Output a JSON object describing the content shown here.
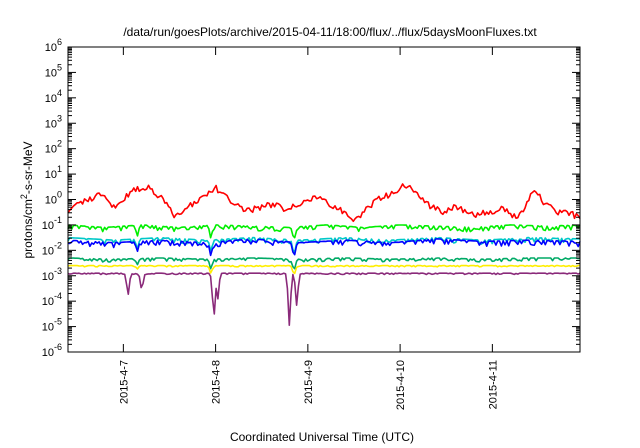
{
  "chart_data": {
    "type": "line",
    "title": "/data/run/goesPlots/archive/2015-04-11/18:00/flux/../flux/5daysMoonFluxes.txt",
    "xlabel": "Coordinated Universal Time (UTC)",
    "ylabel_parts": [
      "protons/cm",
      "2",
      "-s-sr-MeV"
    ],
    "x_domain_days": [
      0,
      5.55
    ],
    "x_ticks": [
      {
        "pos": 0.6,
        "label": "2015-4-7"
      },
      {
        "pos": 1.6,
        "label": "2015-4-8"
      },
      {
        "pos": 2.6,
        "label": "2015-4-9"
      },
      {
        "pos": 3.6,
        "label": "2015-4-10"
      },
      {
        "pos": 4.6,
        "label": "2015-4-11"
      }
    ],
    "y_scale": "log",
    "y_range_exp": [
      -6,
      6
    ],
    "y_ticks": [
      {
        "base": "10",
        "exp": "-6"
      },
      {
        "base": "10",
        "exp": "-5"
      },
      {
        "base": "10",
        "exp": "-4"
      },
      {
        "base": "10",
        "exp": "-3"
      },
      {
        "base": "10",
        "exp": "-2"
      },
      {
        "base": "10",
        "exp": "-1"
      },
      {
        "base": "10",
        "exp": "0"
      },
      {
        "base": "10",
        "exp": "1"
      },
      {
        "base": "10",
        "exp": "2"
      },
      {
        "base": "10",
        "exp": "3"
      },
      {
        "base": "10",
        "exp": "4"
      },
      {
        "base": "10",
        "exp": "5"
      },
      {
        "base": "10",
        "exp": "6"
      }
    ],
    "grid": false,
    "series": [
      {
        "color": "#ff0000",
        "noise": 0.12,
        "points": [
          [
            0,
            -0.4
          ],
          [
            0.15,
            -0.1
          ],
          [
            0.35,
            0.2
          ],
          [
            0.5,
            -0.3
          ],
          [
            0.7,
            0.35
          ],
          [
            0.85,
            0.5
          ],
          [
            1.0,
            0.1
          ],
          [
            1.15,
            -0.6
          ],
          [
            1.3,
            -0.3
          ],
          [
            1.5,
            0.2
          ],
          [
            1.6,
            0.45
          ],
          [
            1.75,
            0.0
          ],
          [
            1.9,
            -0.45
          ],
          [
            2.05,
            -0.35
          ],
          [
            2.2,
            -0.2
          ],
          [
            2.35,
            -0.35
          ],
          [
            2.5,
            -0.15
          ],
          [
            2.7,
            0.1
          ],
          [
            2.85,
            -0.2
          ],
          [
            3.0,
            -0.5
          ],
          [
            3.1,
            -0.85
          ],
          [
            3.2,
            -0.5
          ],
          [
            3.35,
            0.0
          ],
          [
            3.5,
            0.2
          ],
          [
            3.65,
            0.6
          ],
          [
            3.75,
            0.4
          ],
          [
            3.9,
            -0.2
          ],
          [
            4.05,
            -0.5
          ],
          [
            4.2,
            -0.3
          ],
          [
            4.4,
            -0.6
          ],
          [
            4.55,
            -0.5
          ],
          [
            4.7,
            -0.35
          ],
          [
            4.85,
            -0.7
          ],
          [
            4.95,
            -0.4
          ],
          [
            5.05,
            0.45
          ],
          [
            5.15,
            -0.1
          ],
          [
            5.3,
            -0.5
          ],
          [
            5.45,
            -0.55
          ],
          [
            5.55,
            -0.75
          ]
        ],
        "dips": []
      },
      {
        "color": "#00ee00",
        "noise": 0.18,
        "points": [
          [
            0,
            -1.0
          ],
          [
            0.4,
            -1.1
          ],
          [
            0.8,
            -1.0
          ],
          [
            1.2,
            -1.1
          ],
          [
            1.6,
            -1.0
          ],
          [
            2.0,
            -1.05
          ],
          [
            2.4,
            -1.1
          ],
          [
            2.8,
            -1.0
          ],
          [
            3.2,
            -1.1
          ],
          [
            3.6,
            -1.0
          ],
          [
            4.0,
            -1.05
          ],
          [
            4.4,
            -1.1
          ],
          [
            4.8,
            -1.0
          ],
          [
            5.2,
            -1.05
          ],
          [
            5.55,
            -1.0
          ]
        ],
        "dips": [
          [
            0.75,
            -1.5
          ],
          [
            1.55,
            -1.6
          ],
          [
            2.45,
            -1.7
          ]
        ]
      },
      {
        "color": "#00c8c8",
        "noise": 0.18,
        "points": [
          [
            0,
            -1.5
          ],
          [
            0.5,
            -1.6
          ],
          [
            1.0,
            -1.5
          ],
          [
            1.5,
            -1.6
          ],
          [
            2.0,
            -1.5
          ],
          [
            2.5,
            -1.6
          ],
          [
            3.0,
            -1.5
          ],
          [
            3.5,
            -1.6
          ],
          [
            4.0,
            -1.5
          ],
          [
            4.5,
            -1.6
          ],
          [
            5.0,
            -1.5
          ],
          [
            5.55,
            -1.55
          ]
        ],
        "dips": [
          [
            0.75,
            -2.0
          ],
          [
            1.55,
            -2.1
          ],
          [
            2.45,
            -2.3
          ]
        ]
      },
      {
        "color": "#0000ff",
        "noise": 0.2,
        "points": [
          [
            0,
            -1.6
          ],
          [
            0.5,
            -1.7
          ],
          [
            1.0,
            -1.6
          ],
          [
            1.5,
            -1.7
          ],
          [
            2.0,
            -1.55
          ],
          [
            2.5,
            -1.7
          ],
          [
            3.0,
            -1.6
          ],
          [
            3.5,
            -1.7
          ],
          [
            4.0,
            -1.55
          ],
          [
            4.5,
            -1.65
          ],
          [
            5.0,
            -1.6
          ],
          [
            5.55,
            -1.65
          ]
        ],
        "dips": [
          [
            0.75,
            -2.1
          ],
          [
            1.55,
            -2.3
          ],
          [
            2.45,
            -2.4
          ]
        ]
      },
      {
        "color": "#00aa66",
        "noise": 0.12,
        "points": [
          [
            0,
            -2.3
          ],
          [
            0.5,
            -2.35
          ],
          [
            1.0,
            -2.3
          ],
          [
            1.5,
            -2.35
          ],
          [
            2.0,
            -2.3
          ],
          [
            2.5,
            -2.35
          ],
          [
            3.0,
            -2.3
          ],
          [
            3.5,
            -2.35
          ],
          [
            4.0,
            -2.3
          ],
          [
            4.5,
            -2.35
          ],
          [
            5.0,
            -2.3
          ],
          [
            5.55,
            -2.3
          ]
        ],
        "dips": [
          [
            0.75,
            -2.6
          ],
          [
            1.55,
            -2.8
          ],
          [
            2.45,
            -2.9
          ]
        ]
      },
      {
        "color": "#ffee00",
        "noise": 0.05,
        "points": [
          [
            0,
            -2.6
          ],
          [
            1.0,
            -2.6
          ],
          [
            2.0,
            -2.6
          ],
          [
            3.0,
            -2.6
          ],
          [
            4.0,
            -2.6
          ],
          [
            5.0,
            -2.6
          ],
          [
            5.55,
            -2.6
          ]
        ],
        "dips": [
          [
            0.75,
            -2.75
          ],
          [
            1.55,
            -2.95
          ],
          [
            2.45,
            -3.05
          ]
        ]
      },
      {
        "color": "#8a2a7a",
        "noise": 0.05,
        "points": [
          [
            0,
            -2.9
          ],
          [
            1.0,
            -2.9
          ],
          [
            2.0,
            -2.9
          ],
          [
            3.0,
            -2.9
          ],
          [
            4.0,
            -2.9
          ],
          [
            5.0,
            -2.9
          ],
          [
            5.55,
            -2.9
          ]
        ],
        "dips": [
          [
            0.65,
            -3.9
          ],
          [
            0.8,
            -3.7
          ],
          [
            1.58,
            -5.0
          ],
          [
            1.62,
            -4.2
          ],
          [
            2.4,
            -5.1
          ],
          [
            2.48,
            -4.3
          ]
        ]
      }
    ]
  }
}
